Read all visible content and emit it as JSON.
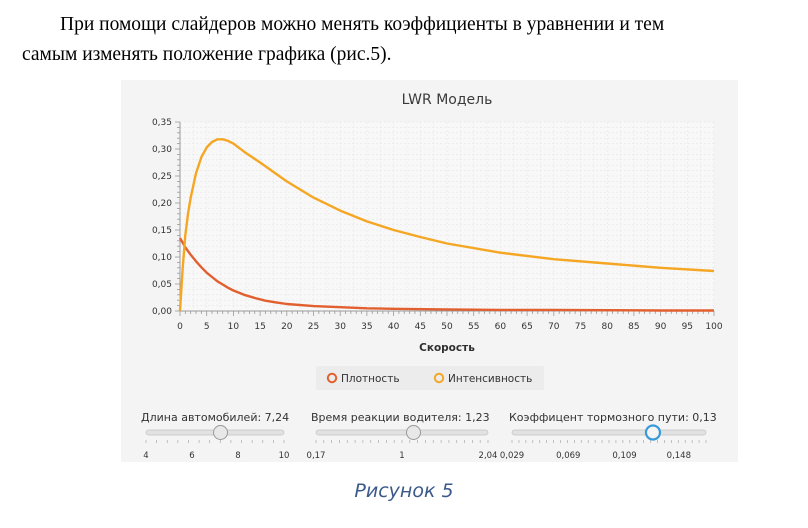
{
  "text": {
    "line1": "При помощи слайдеров можно менять коэффициенты в уравнении и тем",
    "line2": "самым изменять положение графика (рис.5)."
  },
  "caption": "Рисунок 5",
  "chart_data": {
    "type": "line",
    "title": "LWR Модель",
    "xlabel": "Скорость",
    "ylabel": "",
    "xlim": [
      0,
      100
    ],
    "ylim": [
      0,
      0.35
    ],
    "x_ticks": [
      "0",
      "5",
      "10",
      "15",
      "20",
      "25",
      "30",
      "35",
      "40",
      "45",
      "50",
      "55",
      "60",
      "65",
      "70",
      "75",
      "80",
      "85",
      "90",
      "95",
      "100"
    ],
    "y_ticks": [
      "0,00",
      "0,05",
      "0,10",
      "0,15",
      "0,20",
      "0,25",
      "0,30",
      "0,35"
    ],
    "grid": true,
    "legend": "bottom-center",
    "series": [
      {
        "name": "Плотность",
        "color": "#e2602f",
        "x": [
          0,
          1,
          2,
          3,
          4,
          5,
          6,
          7,
          8,
          9,
          10,
          12,
          14,
          16,
          18,
          20,
          25,
          30,
          35,
          40,
          50,
          60,
          70,
          80,
          90,
          100
        ],
        "y": [
          0.135,
          0.118,
          0.104,
          0.092,
          0.081,
          0.071,
          0.063,
          0.055,
          0.049,
          0.043,
          0.038,
          0.03,
          0.024,
          0.019,
          0.016,
          0.013,
          0.009,
          0.007,
          0.005,
          0.004,
          0.003,
          0.002,
          0.002,
          0.0015,
          0.001,
          0.001
        ]
      },
      {
        "name": "Интенсивность",
        "color": "#f5a623",
        "x": [
          0,
          0.5,
          1,
          1.5,
          2,
          3,
          4,
          5,
          6,
          7,
          8,
          9,
          10,
          12,
          15,
          20,
          25,
          30,
          35,
          40,
          45,
          50,
          60,
          70,
          80,
          90,
          100
        ],
        "y": [
          0.0,
          0.08,
          0.14,
          0.18,
          0.21,
          0.255,
          0.285,
          0.303,
          0.313,
          0.318,
          0.318,
          0.315,
          0.31,
          0.295,
          0.275,
          0.24,
          0.21,
          0.186,
          0.166,
          0.15,
          0.137,
          0.125,
          0.108,
          0.096,
          0.088,
          0.08,
          0.074
        ]
      }
    ]
  },
  "sliders": [
    {
      "label": "Длина автомобилей:",
      "value": "7,24",
      "min": 4,
      "max": 10,
      "current": 7.24,
      "ticks": [
        "4",
        "6",
        "8",
        "10"
      ]
    },
    {
      "label": "Время реакции водителя:",
      "value": "1,23",
      "min": 0.17,
      "max": 2.04,
      "current": 1.23,
      "ticks": [
        "0,17",
        "1",
        "2,04"
      ]
    },
    {
      "label": "Коэффицент тормозного пути:",
      "value": "0,13",
      "min": 0.029,
      "max": 0.168,
      "current": 0.13,
      "ticks": [
        "0,029",
        "0,069",
        "0,109",
        "0,148"
      ]
    }
  ]
}
